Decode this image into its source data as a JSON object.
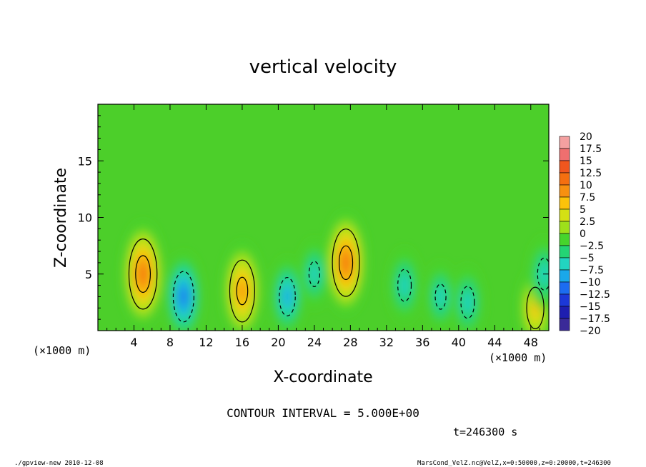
{
  "chart_data": {
    "type": "heatmap",
    "title": "vertical velocity",
    "xlabel": "X-coordinate",
    "ylabel": "Z-coordinate",
    "x_unit": "(×1000 m)",
    "x_unit_right": "(×1000 m)",
    "y_unit": "(×1000 m)",
    "xlim": [
      0,
      50
    ],
    "ylim": [
      0,
      20
    ],
    "x_ticks": [
      "4",
      "8",
      "12",
      "16",
      "20",
      "24",
      "28",
      "32",
      "36",
      "40",
      "44",
      "48"
    ],
    "y_ticks": [
      "5",
      "10",
      "15"
    ],
    "colorbar": {
      "labels": [
        "20",
        "17.5",
        "15",
        "12.5",
        "10",
        "7.5",
        "5",
        "2.5",
        "0",
        "−2.5",
        "−5",
        "−7.5",
        "−10",
        "−12.5",
        "−15",
        "−17.5",
        "−20"
      ],
      "colors": [
        "#f4a0a0",
        "#ef6f6f",
        "#f0561e",
        "#f46f10",
        "#f79010",
        "#fcc20a",
        "#d4e014",
        "#9ee01a",
        "#46d42c",
        "#24d474",
        "#22d4c0",
        "#1aa8ea",
        "#1c6cf0",
        "#1c38d8",
        "#1e1eb0",
        "#3a2a98",
        "#6a28b8"
      ]
    },
    "cells": [
      {
        "x": 5,
        "z": 5,
        "value": 12.5
      },
      {
        "x": 16,
        "z": 3.5,
        "value": 11
      },
      {
        "x": 27.5,
        "z": 6,
        "value": 12
      },
      {
        "x": 9.5,
        "z": 3,
        "value": -9
      },
      {
        "x": 21,
        "z": 3,
        "value": -7
      },
      {
        "x": 24,
        "z": 5,
        "value": -5
      },
      {
        "x": 34,
        "z": 4,
        "value": -6
      },
      {
        "x": 38,
        "z": 3,
        "value": -5
      },
      {
        "x": 41,
        "z": 2.5,
        "value": -6
      },
      {
        "x": 48.5,
        "z": 2,
        "value": 7.5
      },
      {
        "x": 49.5,
        "z": 5,
        "value": -6
      }
    ],
    "contour_interval": "CONTOUR INTERVAL = 5.000E+00"
  },
  "time_label": "t=246300 s",
  "footer": {
    "left": "./gpview-new  2010-12-08",
    "right": "MarsCond_VelZ.nc@VelZ,x=0:50000,z=0:20000,t=246300"
  },
  "colors": {
    "background": "#4ccf2a",
    "contour": "#000000"
  }
}
